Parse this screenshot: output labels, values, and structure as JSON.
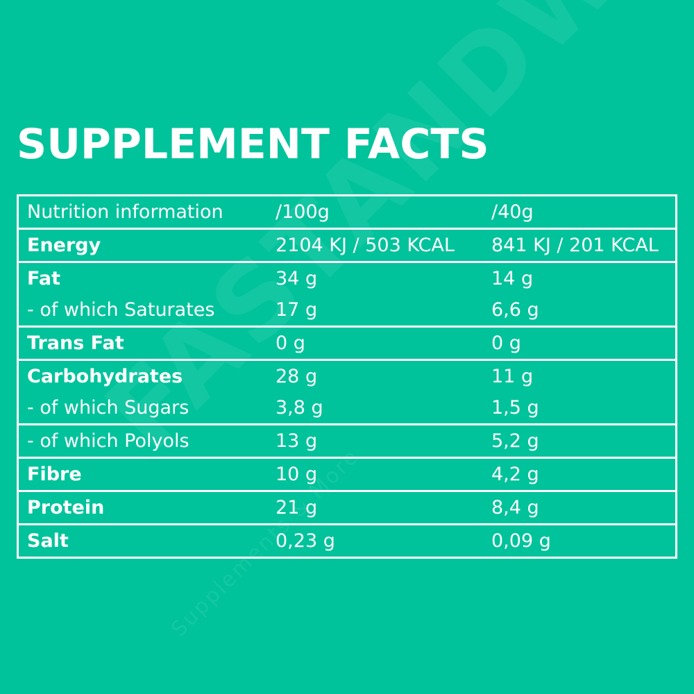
{
  "title": "SUPPLEMENT FACTS",
  "watermark": {
    "brand": "FASTANDWAY",
    "tagline": "Supplements & More"
  },
  "colors": {
    "background": "#00c39b",
    "foreground": "#ffffff"
  },
  "table": {
    "header": {
      "label": "Nutrition information",
      "per100": "/100g",
      "per40": "/40g"
    },
    "rows": [
      {
        "label": "Energy",
        "per100": "2104 KJ / 503 KCAL",
        "per40": "841 KJ / 201 KCAL",
        "bold": true,
        "border_top": true
      },
      {
        "label": "Fat",
        "per100": "34 g",
        "per40": "14 g",
        "bold": true,
        "border_top": true
      },
      {
        "label": "- of which Saturates",
        "per100": "17 g",
        "per40": "6,6 g",
        "bold": false,
        "border_top": false
      },
      {
        "label": "Trans Fat",
        "per100": "0 g",
        "per40": "0 g",
        "bold": true,
        "border_top": true
      },
      {
        "label": "Carbohydrates",
        "per100": "28 g",
        "per40": "11 g",
        "bold": true,
        "border_top": true
      },
      {
        "label": "- of which Sugars",
        "per100": "3,8 g",
        "per40": "1,5 g",
        "bold": false,
        "border_top": false
      },
      {
        "label": "- of which Polyols",
        "per100": "13 g",
        "per40": "5,2 g",
        "bold": false,
        "border_top": true
      },
      {
        "label": "Fibre",
        "per100": "10 g",
        "per40": "4,2 g",
        "bold": true,
        "border_top": true
      },
      {
        "label": "Protein",
        "per100": "21 g",
        "per40": "8,4 g",
        "bold": true,
        "border_top": true
      },
      {
        "label": "Salt",
        "per100": "0,23 g",
        "per40": "0,09 g",
        "bold": true,
        "border_top": true
      }
    ]
  }
}
